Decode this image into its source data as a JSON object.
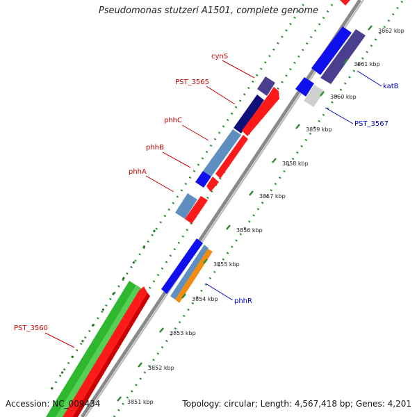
{
  "title": "Pseudomonas stutzeri A1501, complete genome",
  "footer": {
    "accession": "Accession: NC_009434",
    "topology": "Topology: circular; Length: 4,567,418 bp; Genes: 4,201"
  },
  "colors": {
    "backbone": "#8a8a8a",
    "tick": "#2f8a2f",
    "label_forward": "#cc0000",
    "label_reverse": "#0000cc"
  },
  "ticks": [
    {
      "kbp": 3851,
      "label": "3851 kbp"
    },
    {
      "kbp": 3852,
      "label": "3852 kbp"
    },
    {
      "kbp": 3853,
      "label": "3853 kbp"
    },
    {
      "kbp": 3854,
      "label": "3854 kbp"
    },
    {
      "kbp": 3855,
      "label": "3855 kbp"
    },
    {
      "kbp": 3856,
      "label": "3856 kbp"
    },
    {
      "kbp": 3857,
      "label": "3857 kbp"
    },
    {
      "kbp": 3858,
      "label": "3858 kbp"
    },
    {
      "kbp": 3859,
      "label": "3859 kbp"
    },
    {
      "kbp": 3860,
      "label": "3860 kbp"
    },
    {
      "kbp": 3861,
      "label": "3861 kbp"
    },
    {
      "kbp": 3862,
      "label": "3862 kbp"
    }
  ],
  "gene_labels": [
    {
      "name": "cynS",
      "strand": "forward"
    },
    {
      "name": "PST_3565",
      "strand": "forward"
    },
    {
      "name": "phhC",
      "strand": "forward"
    },
    {
      "name": "phhB",
      "strand": "forward"
    },
    {
      "name": "phhA",
      "strand": "forward"
    },
    {
      "name": "PST_3560",
      "strand": "forward"
    },
    {
      "name": "katB",
      "strand": "reverse"
    },
    {
      "name": "PST_3567",
      "strand": "reverse"
    },
    {
      "name": "phhR",
      "strand": "reverse"
    }
  ]
}
